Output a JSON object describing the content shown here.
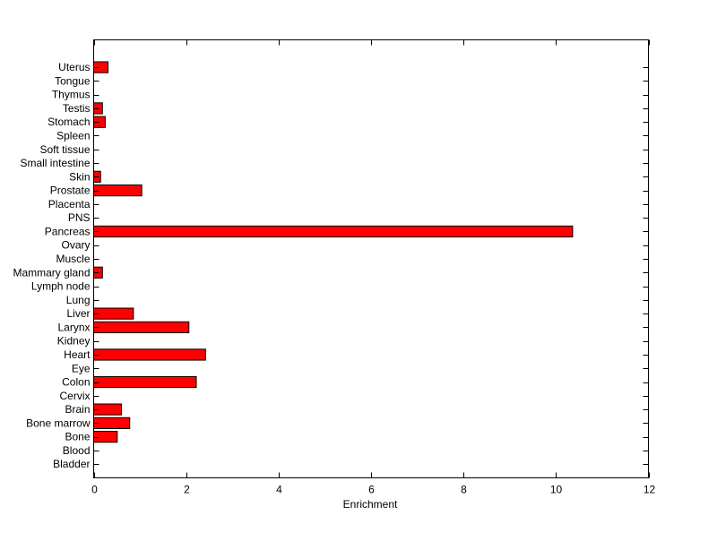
{
  "chart_data": {
    "type": "bar",
    "orientation": "horizontal",
    "title": "",
    "xlabel": "Enrichment",
    "ylabel": "",
    "xlim": [
      0,
      12
    ],
    "xticks": [
      "0",
      "2",
      "4",
      "6",
      "8",
      "10",
      "12"
    ],
    "grid": false,
    "bar_color": "#ff0000",
    "edge_color": "#000000",
    "categories": [
      "Bladder",
      "Blood",
      "Bone",
      "Bone marrow",
      "Brain",
      "Cervix",
      "Colon",
      "Eye",
      "Heart",
      "Kidney",
      "Larynx",
      "Liver",
      "Lung",
      "Lymph node",
      "Mammary gland",
      "Muscle",
      "Ovary",
      "Pancreas",
      "PNS",
      "Placenta",
      "Prostate",
      "Skin",
      "Small intestine",
      "Soft tissue",
      "Spleen",
      "Stomach",
      "Testis",
      "Thymus",
      "Tongue",
      "Uterus"
    ],
    "values": [
      0,
      0,
      0.51,
      0.78,
      0.6,
      0,
      2.22,
      0,
      2.42,
      0,
      2.06,
      0.86,
      0,
      0,
      0.19,
      0,
      0,
      10.36,
      0,
      0,
      1.04,
      0.15,
      0,
      0,
      0,
      0.25,
      0.19,
      0,
      0,
      0.31
    ]
  }
}
